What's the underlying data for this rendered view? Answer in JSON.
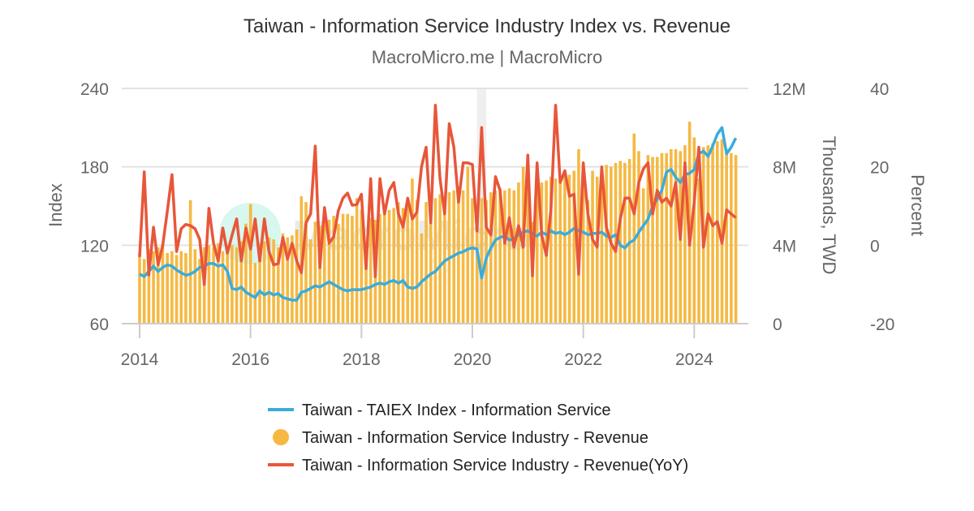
{
  "chart_data": {
    "type": "bar+line",
    "title": "Taiwan - Information Service Industry Index vs. Revenue",
    "subtitle": "MacroMicro.me | MacroMicro",
    "watermark": "MacroMicro",
    "x_start": "2014-01",
    "x_ticks": [
      "2014",
      "2016",
      "2018",
      "2020",
      "2022",
      "2024"
    ],
    "grid": true,
    "shaded_period": [
      "2020-02",
      "2020-04"
    ],
    "axes": {
      "left": {
        "label": "Index",
        "ticks": [
          "240",
          "180",
          "120",
          "60"
        ],
        "range": [
          60,
          240
        ]
      },
      "right1": {
        "label": "Thousands, TWD",
        "ticks": [
          "12M",
          "8M",
          "4M",
          "0"
        ],
        "range": [
          0,
          12
        ]
      },
      "right2": {
        "label": "Percent",
        "ticks": [
          "40",
          "20",
          "0",
          "-20"
        ],
        "range": [
          -20,
          40
        ]
      }
    },
    "legend_position": "bottom",
    "series": [
      {
        "name": "Taiwan - TAIEX Index - Information Service",
        "type": "line",
        "axis": "left",
        "color": "#3bacd9",
        "values": [
          98,
          96,
          100,
          104,
          100,
          103,
          105,
          104,
          101,
          99,
          97,
          98,
          100,
          103,
          104,
          106,
          106,
          104,
          105,
          100,
          87,
          86,
          88,
          84,
          82,
          80,
          85,
          82,
          84,
          82,
          83,
          80,
          79,
          78,
          78,
          84,
          85,
          87,
          89,
          88,
          90,
          92,
          90,
          88,
          86,
          85,
          86,
          86,
          86,
          87,
          88,
          90,
          91,
          90,
          92,
          93,
          91,
          93,
          88,
          87,
          88,
          92,
          95,
          98,
          100,
          104,
          108,
          110,
          112,
          114,
          115,
          117,
          118,
          117,
          95,
          110,
          118,
          124,
          126,
          127,
          124,
          125,
          128,
          130,
          131,
          129,
          127,
          130,
          128,
          131,
          129,
          130,
          128,
          130,
          133,
          131,
          130,
          128,
          129,
          129,
          130,
          127,
          126,
          128,
          120,
          118,
          122,
          124,
          130,
          135,
          140,
          150,
          155,
          162,
          176,
          178,
          172,
          168,
          174,
          175,
          178,
          190,
          192,
          188,
          196,
          205,
          210,
          190,
          195,
          202
        ]
      },
      {
        "name": "Taiwan - Information Service Industry - Revenue",
        "type": "bar",
        "axis": "right1",
        "unit": "M TWD",
        "color": "#f5b942",
        "values": [
          3.6,
          3.3,
          3.8,
          3.7,
          3.9,
          4.0,
          3.6,
          3.7,
          3.5,
          3.7,
          3.6,
          6.3,
          3.8,
          3.3,
          3.9,
          4.0,
          3.9,
          4.1,
          3.7,
          3.9,
          4.0,
          3.9,
          4.2,
          5.1,
          6.1,
          3.1,
          4.1,
          4.2,
          4.4,
          4.3,
          3.9,
          4.6,
          4.4,
          4.5,
          4.8,
          6.5,
          6.2,
          4.3,
          5.2,
          5.0,
          5.3,
          5.3,
          5.5,
          5.1,
          5.6,
          5.6,
          5.5,
          6.4,
          5.8,
          4.1,
          5.4,
          5.3,
          5.6,
          5.9,
          5.8,
          5.9,
          6.2,
          5.9,
          6.4,
          7.4,
          6.3,
          4.6,
          6.2,
          6.3,
          6.4,
          6.6,
          6.5,
          6.7,
          6.8,
          6.5,
          6.8,
          8.0,
          6.4,
          5.3,
          6.4,
          6.3,
          6.7,
          6.8,
          6.9,
          6.8,
          6.9,
          6.8,
          7.2,
          8.0,
          7.0,
          5.2,
          7.4,
          7.2,
          7.3,
          7.5,
          7.4,
          7.5,
          7.7,
          7.6,
          7.8,
          8.9,
          8.0,
          6.3,
          7.8,
          7.5,
          7.8,
          8.1,
          8.0,
          8.2,
          8.3,
          8.2,
          8.4,
          9.7,
          8.8,
          6.9,
          8.6,
          8.5,
          8.5,
          8.7,
          8.7,
          8.9,
          8.9,
          8.8,
          9.1,
          10.3,
          9.5,
          7.4,
          9.0,
          9.1,
          9.2,
          9.3,
          9.4,
          8.9,
          8.7,
          8.6
        ]
      },
      {
        "name": "Taiwan - Information Service Industry - Revenue(YoY)",
        "type": "line",
        "axis": "right2",
        "unit": "%",
        "color": "#e8563a",
        "values": [
          -3,
          18.7,
          -7.6,
          4.6,
          -5,
          0,
          8.8,
          18,
          -1.6,
          4.2,
          5.3,
          5,
          4.2,
          1.5,
          -10,
          9.4,
          0.5,
          -4,
          4.4,
          -2,
          2.6,
          6.7,
          -4,
          4.4,
          -1,
          6.7,
          -4,
          6.7,
          -1.6,
          -5,
          -4.7,
          2,
          -3.6,
          0.5,
          -4,
          -7,
          5.7,
          8,
          25.3,
          -5.7,
          9.6,
          0.5,
          2.2,
          8.8,
          12,
          13.3,
          10.2,
          10.4,
          13,
          -6,
          17,
          -8,
          17,
          8,
          14,
          16,
          8,
          4.6,
          12,
          6.7,
          8.4,
          20,
          25,
          5.7,
          35.7,
          17,
          8,
          31,
          25,
          11,
          21,
          21,
          20.6,
          3.6,
          30,
          4.6,
          2.6,
          17.5,
          14,
          0.5,
          7,
          -0.5,
          5,
          -0.5,
          23,
          -7.8,
          21,
          2.6,
          -2.6,
          9.2,
          35.7,
          16,
          19,
          12.5,
          13,
          -7.4,
          21,
          8,
          1.5,
          -0.5,
          20,
          4.6,
          0.5,
          -1.6,
          6.7,
          12,
          12,
          8,
          16,
          19.5,
          21,
          8,
          14,
          11,
          12,
          10,
          16,
          1.5,
          21,
          0,
          11,
          25,
          -0.5,
          8,
          5,
          6,
          0.5,
          9,
          8,
          7
        ]
      }
    ]
  }
}
